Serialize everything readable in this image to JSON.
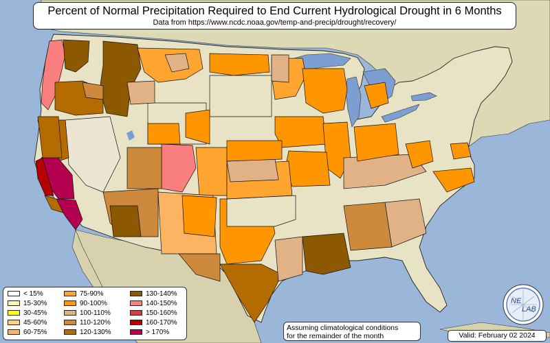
{
  "title": "Percent of Normal Precipitation Required to End Current Hydrological Drought in 6 Months",
  "subtitle": "Data from https://www.ncdc.noaa.gov/temp-and-precip/drought/recovery/",
  "legend": {
    "items": [
      {
        "label": "< 15%",
        "color": "#ffffff"
      },
      {
        "label": "15-30%",
        "color": "#fff5b0"
      },
      {
        "label": "30-45%",
        "color": "#ffff00"
      },
      {
        "label": "45-60%",
        "color": "#fcd27f"
      },
      {
        "label": "60-75%",
        "color": "#fdb462"
      },
      {
        "label": "75-90%",
        "color": "#ffa530"
      },
      {
        "label": "90-100%",
        "color": "#ff9600"
      },
      {
        "label": "100-110%",
        "color": "#e0b286"
      },
      {
        "label": "110-120%",
        "color": "#cd8a3c"
      },
      {
        "label": "120-130%",
        "color": "#b46c00"
      },
      {
        "label": "130-140%",
        "color": "#8c5800"
      },
      {
        "label": "140-150%",
        "color": "#fa8080"
      },
      {
        "label": "150-160%",
        "color": "#dc3c3c"
      },
      {
        "label": "160-170%",
        "color": "#b40000"
      },
      {
        "label": "> 170%",
        "color": "#b40050"
      }
    ]
  },
  "note": {
    "line1": "Assuming climatological conditions",
    "line2": "for the remainder of the month"
  },
  "valid": "Valid: February 02 2024",
  "logo": {
    "text1": "NE",
    "text2": "LAB"
  },
  "colors": {
    "ocean": "#9ab6d8",
    "land": "#e9e3c6",
    "lake": "#7d9ed0",
    "boundary": "#222222"
  }
}
